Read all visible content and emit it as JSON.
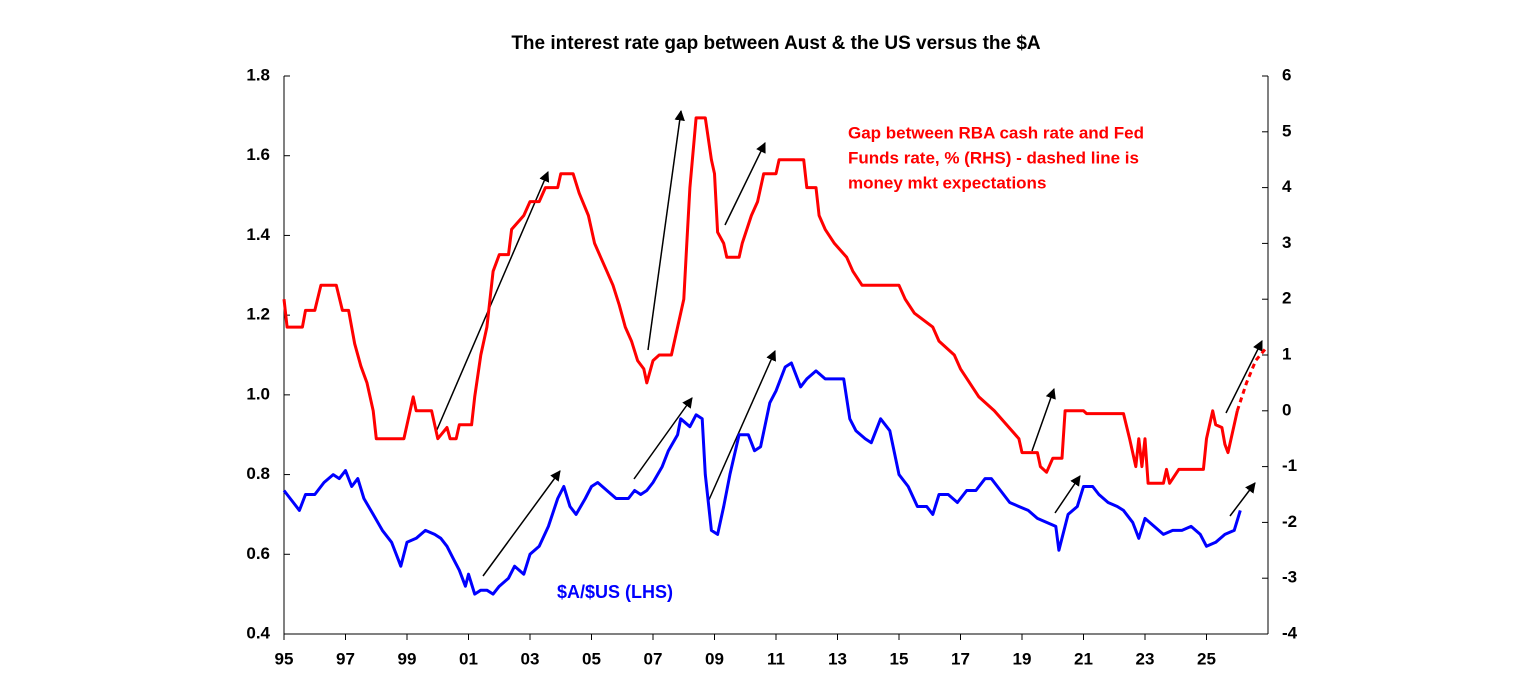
{
  "chart_data": {
    "type": "line",
    "title": "The interest rate gap between Aust & the US versus the $A",
    "annotations": [
      "Gap between RBA cash rate and Fed",
      "Funds rate, % (RHS) - dashed line is",
      "money mkt expectations",
      "$A/$US (LHS)"
    ],
    "xlim": [
      1995,
      2027
    ],
    "xticks": [
      {
        "value": 1995,
        "label": "95"
      },
      {
        "value": 1997,
        "label": "97"
      },
      {
        "value": 1999,
        "label": "99"
      },
      {
        "value": 2001,
        "label": "01"
      },
      {
        "value": 2003,
        "label": "03"
      },
      {
        "value": 2005,
        "label": "05"
      },
      {
        "value": 2007,
        "label": "07"
      },
      {
        "value": 2009,
        "label": "09"
      },
      {
        "value": 2011,
        "label": "11"
      },
      {
        "value": 2013,
        "label": "13"
      },
      {
        "value": 2015,
        "label": "15"
      },
      {
        "value": 2017,
        "label": "17"
      },
      {
        "value": 2019,
        "label": "19"
      },
      {
        "value": 2021,
        "label": "21"
      },
      {
        "value": 2023,
        "label": "23"
      },
      {
        "value": 2025,
        "label": "25"
      }
    ],
    "ylim": [
      0.4,
      1.8
    ],
    "yticks": [
      0.4,
      0.6,
      0.8,
      {
        "value": 1,
        "label": "1.0"
      },
      1.2,
      1.4,
      1.6,
      1.8
    ],
    "y2lim": [
      -4,
      6
    ],
    "y2ticks": [
      -4,
      -3,
      -2,
      -1,
      0,
      1,
      2,
      3,
      4,
      5,
      6
    ],
    "grid": false,
    "series": [
      {
        "color": "#ff0000",
        "axis": "y2",
        "dashed": false,
        "x": [
          1995.0,
          1995.1,
          1995.6,
          1995.7,
          1996.0,
          1996.2,
          1996.7,
          1996.9,
          1997.1,
          1997.3,
          1997.5,
          1997.7,
          1997.9,
          1998.0,
          1998.9,
          1999.0,
          1999.2,
          1999.3,
          1999.8,
          2000.0,
          2000.3,
          2000.4,
          2000.6,
          2000.7,
          2001.1,
          2001.2,
          2001.4,
          2001.6,
          2001.8,
          2002.0,
          2002.3,
          2002.4,
          2002.8,
          2003.0,
          2003.3,
          2003.5,
          2003.9,
          2004.0,
          2004.4,
          2004.6,
          2004.9,
          2005.1,
          2005.3,
          2005.5,
          2005.7,
          2005.9,
          2006.1,
          2006.3,
          2006.5,
          2006.7,
          2006.8,
          2007.0,
          2007.2,
          2007.6,
          2007.8,
          2008.0,
          2008.1,
          2008.2,
          2008.4,
          2008.7,
          2008.9,
          2009.0,
          2009.1,
          2009.3,
          2009.4,
          2009.8,
          2009.9,
          2010.2,
          2010.4,
          2010.6,
          2011.0,
          2011.1,
          2011.9,
          2012.0,
          2012.3,
          2012.4,
          2012.6,
          2012.9,
          2013.3,
          2013.5,
          2013.8,
          2015.0,
          2015.2,
          2015.5,
          2016.1,
          2016.3,
          2016.8,
          2017.0,
          2017.3,
          2017.6,
          2018.1,
          2018.5,
          2018.9,
          2019.0,
          2019.5,
          2019.6,
          2019.8,
          2020.0,
          2020.3,
          2020.4,
          2021.0,
          2021.1,
          2022.3,
          2022.5,
          2022.7,
          2022.8,
          2022.9,
          2023.0,
          2023.1,
          2023.6,
          2023.7,
          2023.8,
          2024.1,
          2024.9,
          2025.0,
          2025.2,
          2025.3,
          2025.5,
          2025.6,
          2025.7,
          2025.8,
          2025.9,
          2026.0
        ],
        "values": [
          2.0,
          1.5,
          1.5,
          1.8,
          1.8,
          2.25,
          2.25,
          1.8,
          1.8,
          1.2,
          0.8,
          0.5,
          0,
          -0.5,
          -0.5,
          -0.25,
          0.25,
          0,
          0,
          -0.5,
          -0.3,
          -0.5,
          -0.5,
          -0.25,
          -0.25,
          0.25,
          1.0,
          1.5,
          2.5,
          2.8,
          2.8,
          3.25,
          3.5,
          3.75,
          3.75,
          4.0,
          4.0,
          4.25,
          4.25,
          3.9,
          3.5,
          3.0,
          2.75,
          2.5,
          2.25,
          1.9,
          1.5,
          1.25,
          0.9,
          0.75,
          0.5,
          0.9,
          1.0,
          1.0,
          1.5,
          2.0,
          3.0,
          4.0,
          5.25,
          5.25,
          4.5,
          4.25,
          3.2,
          3.0,
          2.75,
          2.75,
          3.0,
          3.5,
          3.75,
          4.25,
          4.25,
          4.5,
          4.5,
          4.0,
          4.0,
          3.5,
          3.25,
          3.0,
          2.75,
          2.5,
          2.25,
          2.25,
          2.0,
          1.75,
          1.5,
          1.25,
          1.0,
          0.75,
          0.5,
          0.25,
          0,
          -0.25,
          -0.5,
          -0.75,
          -0.75,
          -1.0,
          -1.1,
          -0.85,
          -0.85,
          0,
          0,
          -0.05,
          -0.05,
          -0.5,
          -1.0,
          -0.5,
          -1.0,
          -0.5,
          -1.3,
          -1.3,
          -1.05,
          -1.3,
          -1.05,
          -1.05,
          -0.5,
          0,
          -0.25,
          -0.3,
          -0.6,
          -0.75,
          -0.5,
          -0.25,
          0
        ]
      },
      {
        "color": "#ff0000",
        "axis": "y2",
        "dashed": true,
        "x": [
          2026.0,
          2026.3,
          2026.6,
          2026.9
        ],
        "values": [
          0,
          0.5,
          0.9,
          1.1
        ]
      },
      {
        "color": "#0000ff",
        "axis": "y",
        "dashed": false,
        "x": [
          1995.0,
          1995.2,
          1995.5,
          1995.7,
          1996.0,
          1996.3,
          1996.6,
          1996.8,
          1997.0,
          1997.2,
          1997.4,
          1997.6,
          1997.9,
          1998.2,
          1998.5,
          1998.7,
          1998.8,
          1999.0,
          1999.3,
          1999.6,
          1999.9,
          2000.1,
          2000.3,
          2000.5,
          2000.7,
          2000.9,
          2001.0,
          2001.2,
          2001.4,
          2001.6,
          2001.8,
          2002.0,
          2002.3,
          2002.5,
          2002.8,
          2003.0,
          2003.3,
          2003.6,
          2003.9,
          2004.1,
          2004.3,
          2004.5,
          2004.8,
          2005.0,
          2005.2,
          2005.5,
          2005.8,
          2006.0,
          2006.2,
          2006.4,
          2006.6,
          2006.8,
          2007.0,
          2007.3,
          2007.5,
          2007.8,
          2007.9,
          2008.2,
          2008.4,
          2008.6,
          2008.7,
          2008.9,
          2009.1,
          2009.3,
          2009.5,
          2009.8,
          2010.1,
          2010.3,
          2010.5,
          2010.8,
          2011.0,
          2011.3,
          2011.5,
          2011.8,
          2012.0,
          2012.3,
          2012.6,
          2012.9,
          2013.2,
          2013.4,
          2013.6,
          2013.9,
          2014.1,
          2014.4,
          2014.7,
          2015.0,
          2015.3,
          2015.6,
          2015.9,
          2016.1,
          2016.3,
          2016.6,
          2016.9,
          2017.2,
          2017.5,
          2017.8,
          2018.0,
          2018.3,
          2018.6,
          2018.9,
          2019.2,
          2019.5,
          2019.8,
          2020.1,
          2020.2,
          2020.5,
          2020.8,
          2021.0,
          2021.3,
          2021.5,
          2021.8,
          2022.1,
          2022.3,
          2022.6,
          2022.8,
          2023.0,
          2023.3,
          2023.6,
          2023.9,
          2024.2,
          2024.5,
          2024.8,
          2025.0,
          2025.3,
          2025.6,
          2025.9,
          2026.1
        ],
        "values": [
          0.76,
          0.74,
          0.71,
          0.75,
          0.75,
          0.78,
          0.8,
          0.79,
          0.81,
          0.77,
          0.79,
          0.74,
          0.7,
          0.66,
          0.63,
          0.59,
          0.57,
          0.63,
          0.64,
          0.66,
          0.65,
          0.64,
          0.62,
          0.59,
          0.56,
          0.52,
          0.55,
          0.5,
          0.51,
          0.51,
          0.5,
          0.52,
          0.54,
          0.57,
          0.55,
          0.6,
          0.62,
          0.67,
          0.74,
          0.77,
          0.72,
          0.7,
          0.74,
          0.77,
          0.78,
          0.76,
          0.74,
          0.74,
          0.74,
          0.76,
          0.75,
          0.76,
          0.78,
          0.82,
          0.86,
          0.9,
          0.94,
          0.92,
          0.95,
          0.94,
          0.8,
          0.66,
          0.65,
          0.72,
          0.8,
          0.9,
          0.9,
          0.86,
          0.87,
          0.98,
          1.01,
          1.07,
          1.08,
          1.02,
          1.04,
          1.06,
          1.04,
          1.04,
          1.04,
          0.94,
          0.91,
          0.89,
          0.88,
          0.94,
          0.91,
          0.8,
          0.77,
          0.72,
          0.72,
          0.7,
          0.75,
          0.75,
          0.73,
          0.76,
          0.76,
          0.79,
          0.79,
          0.76,
          0.73,
          0.72,
          0.71,
          0.69,
          0.68,
          0.67,
          0.61,
          0.7,
          0.72,
          0.77,
          0.77,
          0.75,
          0.73,
          0.72,
          0.71,
          0.68,
          0.64,
          0.69,
          0.67,
          0.65,
          0.66,
          0.66,
          0.67,
          0.65,
          0.62,
          0.63,
          0.65,
          0.66,
          0.71
        ]
      }
    ]
  }
}
